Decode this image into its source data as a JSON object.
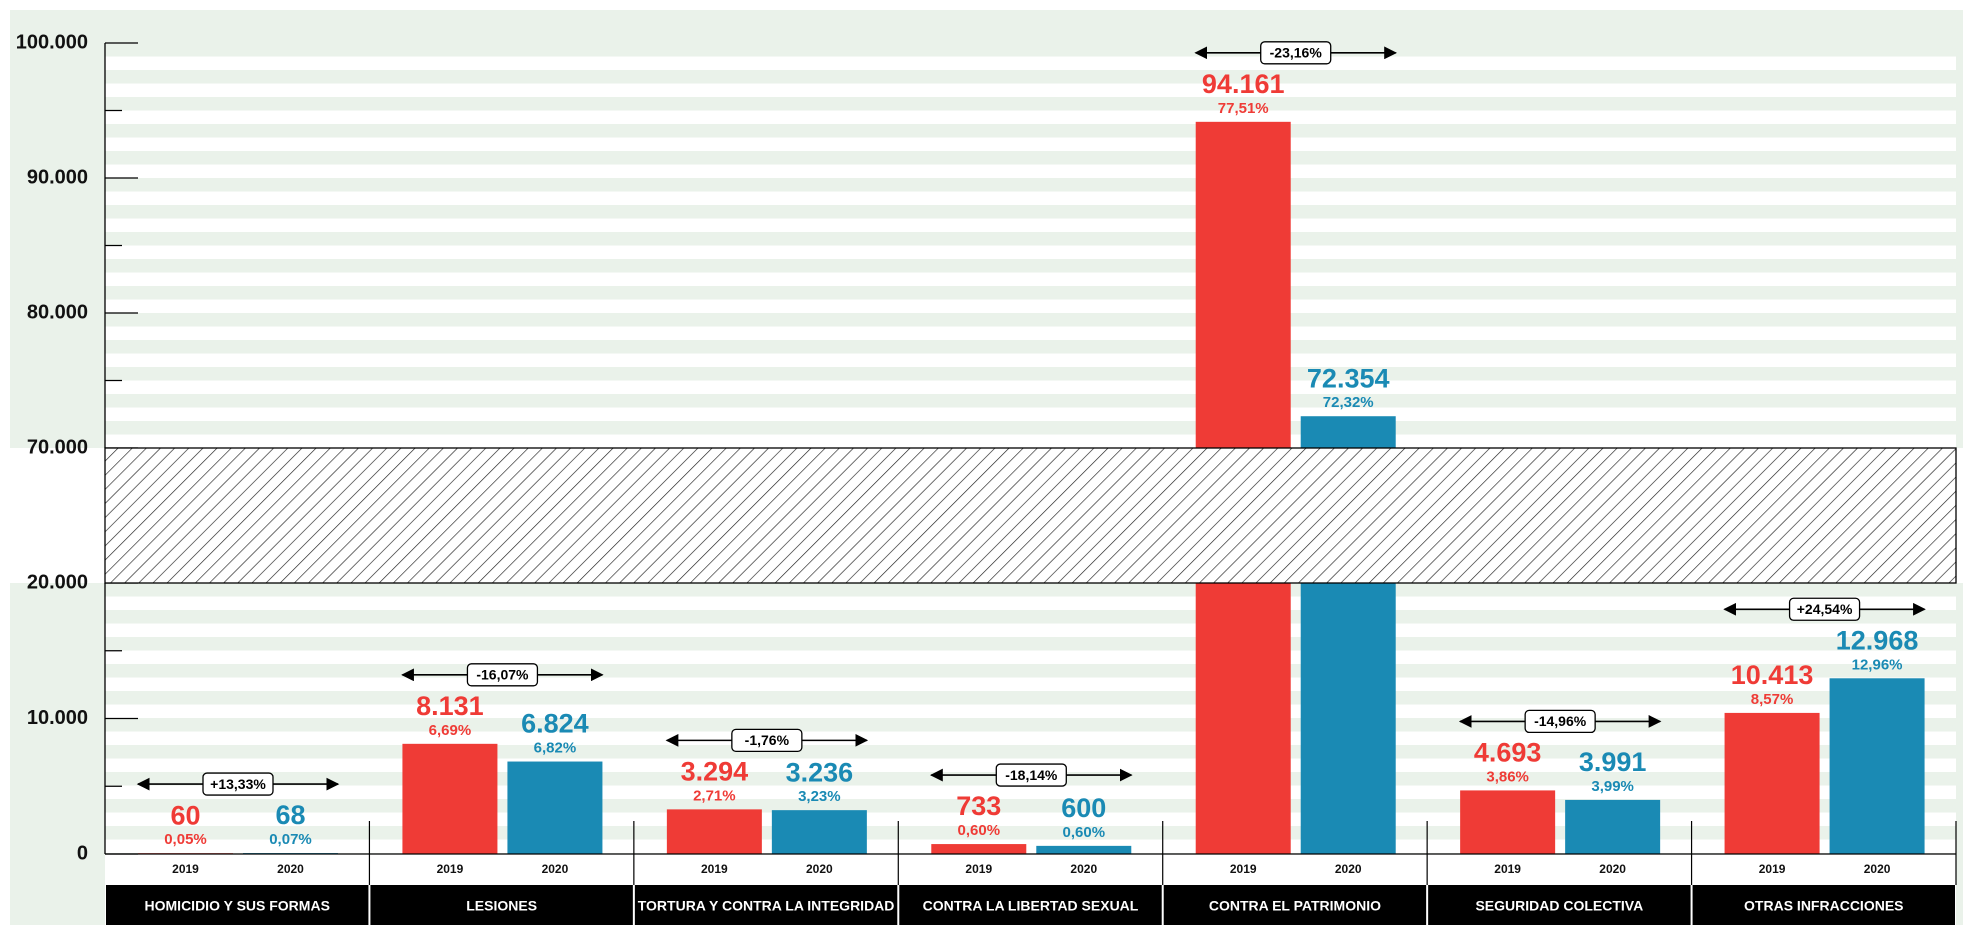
{
  "chart_data": {
    "type": "bar",
    "categories": [
      "HOMICIDIO Y SUS FORMAS",
      "LESIONES",
      "TORTURA Y CONTRA LA INTEGRIDAD",
      "CONTRA LA LIBERTAD SEXUAL",
      "CONTRA EL PATRIMONIO",
      "SEGURIDAD COLECTIVA",
      "OTRAS INFRACCIONES"
    ],
    "series": [
      {
        "name": "2019",
        "color": "#ef3b36",
        "values": [
          60,
          8131,
          3294,
          733,
          94161,
          4693,
          10413
        ],
        "value_labels": [
          "60",
          "8.131",
          "3.294",
          "733",
          "94.161",
          "4.693",
          "10.413"
        ],
        "shares": [
          0.05,
          6.69,
          2.71,
          0.6,
          77.51,
          3.86,
          8.57
        ],
        "share_labels": [
          "0,05%",
          "6,69%",
          "2,71%",
          "0,60%",
          "77,51%",
          "3,86%",
          "8,57%"
        ]
      },
      {
        "name": "2020",
        "color": "#1a8ab4",
        "values": [
          68,
          6824,
          3236,
          600,
          72354,
          3991,
          12968
        ],
        "value_labels": [
          "68",
          "6.824",
          "3.236",
          "600",
          "72.354",
          "3.991",
          "12.968"
        ],
        "shares": [
          0.07,
          6.82,
          3.23,
          0.6,
          72.32,
          3.99,
          12.96
        ],
        "share_labels": [
          "0,07%",
          "6,82%",
          "3,23%",
          "0,60%",
          "72,32%",
          "3,99%",
          "12,96%"
        ]
      }
    ],
    "changes": [
      13.33,
      -16.07,
      -1.76,
      -18.14,
      -23.16,
      -14.96,
      24.54
    ],
    "change_labels": [
      "+13,33%",
      "-16,07%",
      "-1,76%",
      "-18,14%",
      "-23,16%",
      "-14,96%",
      "+24,54%"
    ],
    "ylim": [
      0,
      100000
    ],
    "ybreak": [
      20000,
      70000
    ],
    "yticks": [
      0,
      {
        "value": 10000,
        "label": "10.000"
      },
      {
        "value": 20000,
        "label": "20.000"
      },
      {
        "value": 70000,
        "label": "70.000"
      },
      {
        "value": 80000,
        "label": "80.000"
      },
      {
        "value": 90000,
        "label": "90.000"
      },
      {
        "value": 100000,
        "label": "100.000"
      }
    ],
    "minor_yticks": [
      5000,
      15000,
      75000,
      85000,
      95000
    ]
  }
}
